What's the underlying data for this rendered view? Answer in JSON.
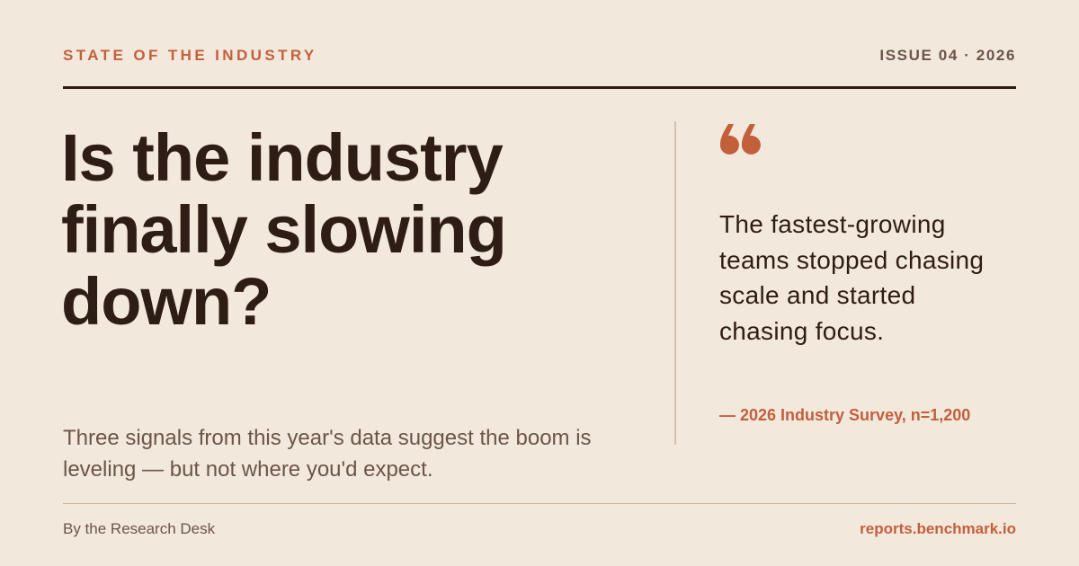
{
  "header": {
    "kicker": "STATE OF THE INDUSTRY",
    "issue": "ISSUE 04 · 2026"
  },
  "headline": "Is the industry finally slowing down?",
  "dek": "Three signals from this year's data suggest the boom is leveling — but not where you'd expect.",
  "quote": {
    "text": "The fastest-growing teams stopped chasing scale and started chasing focus.",
    "attribution": "— 2026 Industry Survey, n=1,200"
  },
  "footer": {
    "byline": "By the Research Desk",
    "url": "reports.benchmark.io"
  }
}
